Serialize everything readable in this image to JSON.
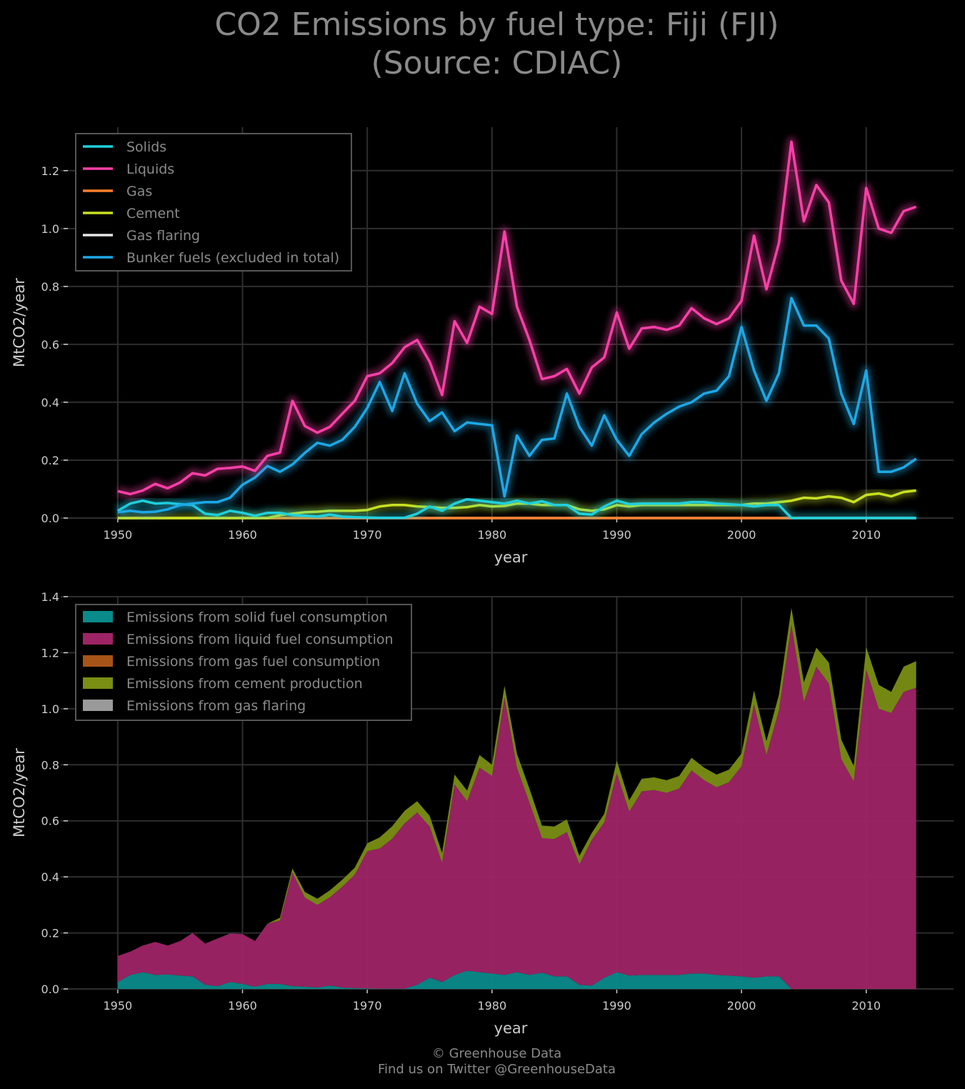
{
  "title": "CO2 Emissions by fuel type: Fiji (FJI)\n(Source: CDIAC)",
  "footer": {
    "line1": "© Greenhouse Data",
    "line2": "Find us on Twitter @GreenhouseData"
  },
  "colors": {
    "background": "#000000",
    "solids": "#1fd0dc",
    "liquids": "#ff3fa8",
    "gas": "#ff7f2a",
    "cement": "#c8e022",
    "gas_flaring": "#e6e6e6",
    "bunker": "#1ca8e6",
    "area_solid": "#0a8a8a",
    "area_liquid": "#9e2466",
    "area_gas": "#a85418",
    "area_cement": "#7a8e14",
    "area_flaring": "#9a9a9a"
  },
  "chart_data": [
    {
      "type": "line",
      "title": "",
      "xlabel": "year",
      "ylabel": "MtCO2/year",
      "xlim": [
        1946,
        2017
      ],
      "ylim": [
        0,
        1.35
      ],
      "xticks": [
        "1950",
        "1960",
        "1970",
        "1980",
        "1990",
        "2000",
        "2010"
      ],
      "yticks": [
        "0.0",
        "0.2",
        "0.4",
        "0.6",
        "0.8",
        "1.0",
        "1.2"
      ],
      "grid": true,
      "legend_position": "top-left",
      "x": [
        1950,
        1951,
        1952,
        1953,
        1954,
        1955,
        1956,
        1957,
        1958,
        1959,
        1960,
        1961,
        1962,
        1963,
        1964,
        1965,
        1966,
        1967,
        1968,
        1969,
        1970,
        1971,
        1972,
        1973,
        1974,
        1975,
        1976,
        1977,
        1978,
        1979,
        1980,
        1981,
        1982,
        1983,
        1984,
        1985,
        1986,
        1987,
        1988,
        1989,
        1990,
        1991,
        1992,
        1993,
        1994,
        1995,
        1996,
        1997,
        1998,
        1999,
        2000,
        2001,
        2002,
        2003,
        2004,
        2005,
        2006,
        2007,
        2008,
        2009,
        2010,
        2011,
        2012,
        2013,
        2014
      ],
      "series": [
        {
          "name": "Solids",
          "key": "solids",
          "values": [
            0.025,
            0.05,
            0.06,
            0.05,
            0.052,
            0.048,
            0.045,
            0.015,
            0.01,
            0.025,
            0.018,
            0.008,
            0.018,
            0.018,
            0.01,
            0.008,
            0.005,
            0.012,
            0.005,
            0.003,
            0.002,
            0.001,
            0.001,
            0.001,
            0.015,
            0.04,
            0.025,
            0.05,
            0.065,
            0.06,
            0.055,
            0.05,
            0.06,
            0.05,
            0.058,
            0.045,
            0.045,
            0.015,
            0.012,
            0.04,
            0.06,
            0.048,
            0.05,
            0.05,
            0.05,
            0.05,
            0.055,
            0.055,
            0.05,
            0.048,
            0.045,
            0.04,
            0.045,
            0.045,
            0,
            0,
            0,
            0,
            0,
            0,
            0,
            0,
            0,
            0,
            0
          ]
        },
        {
          "name": "Liquids",
          "key": "liquids",
          "values": [
            0.093,
            0.083,
            0.095,
            0.118,
            0.103,
            0.123,
            0.155,
            0.147,
            0.17,
            0.173,
            0.178,
            0.163,
            0.215,
            0.226,
            0.405,
            0.318,
            0.295,
            0.315,
            0.36,
            0.405,
            0.49,
            0.5,
            0.535,
            0.59,
            0.615,
            0.54,
            0.425,
            0.68,
            0.605,
            0.73,
            0.705,
            0.99,
            0.73,
            0.615,
            0.48,
            0.49,
            0.515,
            0.43,
            0.52,
            0.555,
            0.71,
            0.585,
            0.655,
            0.66,
            0.65,
            0.665,
            0.725,
            0.69,
            0.67,
            0.69,
            0.75,
            0.975,
            0.79,
            0.95,
            1.3,
            1.025,
            1.15,
            1.09,
            0.82,
            0.74,
            1.14,
            1.0,
            0.985,
            1.06,
            1.075
          ]
        },
        {
          "name": "Gas",
          "key": "gas",
          "values": [
            0,
            0,
            0,
            0,
            0,
            0,
            0,
            0,
            0,
            0,
            0,
            0,
            0,
            0,
            0,
            0,
            0,
            0,
            0,
            0,
            0,
            0,
            0,
            0,
            0,
            0,
            0,
            0,
            0,
            0,
            0,
            0,
            0,
            0,
            0,
            0,
            0,
            0,
            0,
            0,
            0,
            0,
            0,
            0,
            0,
            0,
            0,
            0,
            0,
            0,
            0,
            0,
            0,
            0,
            0,
            0,
            0,
            0,
            0,
            0,
            0,
            0,
            0,
            0,
            0
          ]
        },
        {
          "name": "Cement",
          "key": "cement",
          "values": [
            0,
            0,
            0,
            0,
            0,
            0,
            0,
            0,
            0,
            0,
            0,
            0,
            0,
            0.01,
            0.015,
            0.02,
            0.022,
            0.025,
            0.025,
            0.025,
            0.028,
            0.04,
            0.045,
            0.045,
            0.04,
            0.038,
            0.035,
            0.035,
            0.038,
            0.045,
            0.04,
            0.042,
            0.05,
            0.05,
            0.045,
            0.045,
            0.045,
            0.03,
            0.025,
            0.03,
            0.045,
            0.04,
            0.045,
            0.045,
            0.045,
            0.045,
            0.045,
            0.045,
            0.045,
            0.045,
            0.045,
            0.05,
            0.05,
            0.055,
            0.06,
            0.07,
            0.068,
            0.075,
            0.07,
            0.055,
            0.08,
            0.085,
            0.075,
            0.09,
            0.095
          ]
        },
        {
          "name": "Gas flaring",
          "key": "gas_flaring",
          "values": [
            0,
            0,
            0,
            0,
            0,
            0,
            0,
            0,
            0,
            0,
            0,
            0,
            0,
            0,
            0,
            0,
            0,
            0,
            0,
            0,
            0,
            0,
            0,
            0,
            0,
            0,
            0,
            0,
            0,
            0,
            0,
            0,
            0,
            0,
            0,
            0,
            0,
            0,
            0,
            0,
            0,
            0,
            0,
            0,
            0,
            0,
            0,
            0,
            0,
            0,
            0,
            0,
            0,
            0,
            0,
            0,
            0,
            0,
            0,
            0,
            0,
            0,
            0,
            0,
            0
          ]
        },
        {
          "name": "Bunker fuels (excluded in total)",
          "key": "bunker",
          "values": [
            0.02,
            0.025,
            0.02,
            0.022,
            0.03,
            0.045,
            0.05,
            0.055,
            0.055,
            0.07,
            0.115,
            0.14,
            0.18,
            0.16,
            0.185,
            0.225,
            0.26,
            0.25,
            0.27,
            0.315,
            0.38,
            0.47,
            0.37,
            0.5,
            0.395,
            0.335,
            0.365,
            0.3,
            0.33,
            0.325,
            0.32,
            0.075,
            0.285,
            0.215,
            0.27,
            0.275,
            0.43,
            0.315,
            0.25,
            0.355,
            0.27,
            0.215,
            0.29,
            0.33,
            0.36,
            0.385,
            0.4,
            0.43,
            0.44,
            0.49,
            0.66,
            0.51,
            0.405,
            0.5,
            0.76,
            0.665,
            0.665,
            0.62,
            0.43,
            0.325,
            0.51,
            0.16,
            0.16,
            0.175,
            0.205
          ]
        }
      ]
    },
    {
      "type": "area",
      "title": "",
      "xlabel": "year",
      "ylabel": "MtCO2/year",
      "xlim": [
        1946,
        2017
      ],
      "ylim": [
        0,
        1.4
      ],
      "xticks": [
        "1950",
        "1960",
        "1970",
        "1980",
        "1990",
        "2000",
        "2010"
      ],
      "yticks": [
        "0.0",
        "0.2",
        "0.4",
        "0.6",
        "0.8",
        "1.0",
        "1.2",
        "1.4"
      ],
      "grid": true,
      "stacked": true,
      "legend_position": "top-left",
      "series": [
        {
          "name": "Emissions from solid fuel consumption",
          "key": "area_solid",
          "source": "solids"
        },
        {
          "name": "Emissions from liquid fuel consumption",
          "key": "area_liquid",
          "source": "liquids"
        },
        {
          "name": "Emissions from gas fuel consumption",
          "key": "area_gas",
          "source": "gas"
        },
        {
          "name": "Emissions from cement production",
          "key": "area_cement",
          "source": "cement"
        },
        {
          "name": "Emissions from gas flaring",
          "key": "area_flaring",
          "source": "gas_flaring"
        }
      ]
    }
  ]
}
